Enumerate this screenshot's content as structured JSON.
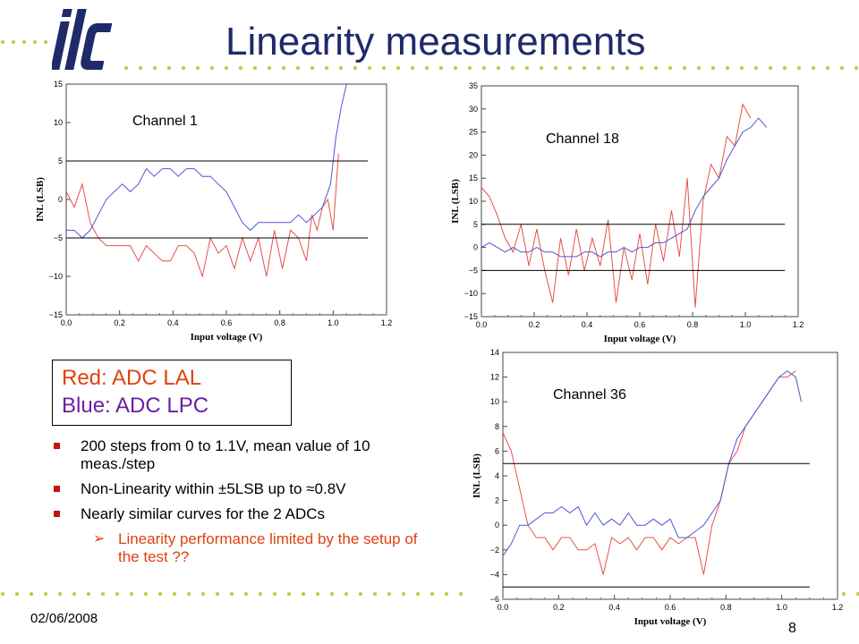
{
  "slide": {
    "title": "Linearity measurements",
    "date": "02/06/2008",
    "page_number": "8",
    "logo_text": "ilc"
  },
  "legend": {
    "red_label": "Red: ADC LAL",
    "blue_label": "Blue: ADC LPC"
  },
  "bullets": [
    "200 steps from 0 to 1.1V, mean value of 10 meas./step",
    "Non-Linearity within ±5LSB up to ≈0.8V",
    "Nearly similar curves for the 2 ADCs"
  ],
  "sub_bullet": "Linearity performance limited by the setup of the test ??",
  "colors": {
    "title": "#1f2a6b",
    "red_series": "#e8504a",
    "blue_series": "#4f55d8",
    "legend_red": "#e0420c",
    "legend_blue": "#6b1fa0",
    "dots": "#c9c94a",
    "bullet_marker": "#c0160c"
  },
  "chart_data": [
    {
      "type": "line",
      "annotation": "Channel 1",
      "xlabel": "Input voltage (V)",
      "ylabel": "INL (LSB)",
      "xlim": [
        0,
        1.2
      ],
      "ylim": [
        -15,
        15
      ],
      "xticks": [
        "0.0",
        "0.2",
        "0.4",
        "0.6",
        "0.8",
        "1.0",
        "1.2"
      ],
      "yticks": [
        "−15",
        "−10",
        "−5",
        "0",
        "5",
        "10",
        "15"
      ],
      "hlines": [
        5,
        -5
      ],
      "hline_xrange": [
        0,
        1.13
      ],
      "series": [
        {
          "color": "red",
          "x": [
            0.0,
            0.03,
            0.06,
            0.09,
            0.12,
            0.15,
            0.18,
            0.21,
            0.24,
            0.27,
            0.3,
            0.33,
            0.36,
            0.39,
            0.42,
            0.45,
            0.48,
            0.51,
            0.54,
            0.57,
            0.6,
            0.63,
            0.66,
            0.69,
            0.72,
            0.75,
            0.78,
            0.81,
            0.84,
            0.87,
            0.9,
            0.92,
            0.94,
            0.96,
            0.98,
            1.0,
            1.02
          ],
          "y": [
            1,
            -1,
            2,
            -3,
            -5,
            -6,
            -6,
            -6,
            -6,
            -8,
            -6,
            -7,
            -8,
            -8,
            -6,
            -6,
            -7,
            -10,
            -5,
            -7,
            -6,
            -9,
            -5,
            -8,
            -5,
            -10,
            -4,
            -9,
            -4,
            -5,
            -8,
            -2,
            -4,
            -1,
            0,
            -4,
            6
          ]
        },
        {
          "color": "blue",
          "x": [
            0.0,
            0.03,
            0.06,
            0.09,
            0.12,
            0.15,
            0.18,
            0.21,
            0.24,
            0.27,
            0.3,
            0.33,
            0.36,
            0.39,
            0.42,
            0.45,
            0.48,
            0.51,
            0.54,
            0.57,
            0.6,
            0.63,
            0.66,
            0.69,
            0.72,
            0.75,
            0.78,
            0.81,
            0.84,
            0.87,
            0.9,
            0.93,
            0.96,
            0.99,
            1.01,
            1.03,
            1.05
          ],
          "y": [
            -4,
            -4,
            -5,
            -4,
            -2,
            0,
            1,
            2,
            1,
            2,
            4,
            3,
            4,
            4,
            3,
            4,
            4,
            3,
            3,
            2,
            1,
            -1,
            -3,
            -4,
            -3,
            -3,
            -3,
            -3,
            -3,
            -2,
            -3,
            -2,
            -1,
            2,
            8,
            12,
            15
          ]
        }
      ]
    },
    {
      "type": "line",
      "annotation": "Channel 18",
      "xlabel": "Input voltage (V)",
      "ylabel": "INL (LSB)",
      "xlim": [
        0,
        1.2
      ],
      "ylim": [
        -15,
        35
      ],
      "xticks": [
        "0.0",
        "0.2",
        "0.4",
        "0.6",
        "0.8",
        "1.0",
        "1.2"
      ],
      "yticks": [
        "−15",
        "−10",
        "−5",
        "0",
        "5",
        "10",
        "15",
        "20",
        "25",
        "30",
        "35"
      ],
      "hlines": [
        5,
        -5
      ],
      "hline_xrange": [
        0,
        1.15
      ],
      "series": [
        {
          "color": "red",
          "x": [
            0.0,
            0.03,
            0.06,
            0.09,
            0.12,
            0.15,
            0.18,
            0.21,
            0.24,
            0.27,
            0.3,
            0.33,
            0.36,
            0.39,
            0.42,
            0.45,
            0.48,
            0.51,
            0.54,
            0.57,
            0.6,
            0.63,
            0.66,
            0.69,
            0.72,
            0.75,
            0.78,
            0.81,
            0.84,
            0.87,
            0.9,
            0.93,
            0.96,
            0.99,
            1.02
          ],
          "y": [
            13,
            11,
            7,
            2,
            -1,
            5,
            -4,
            4,
            -5,
            -12,
            2,
            -6,
            4,
            -5,
            2,
            -4,
            6,
            -12,
            0,
            -7,
            3,
            -8,
            5,
            -3,
            8,
            -2,
            15,
            -13,
            10,
            18,
            15,
            24,
            22,
            31,
            28
          ]
        },
        {
          "color": "blue",
          "x": [
            0.0,
            0.03,
            0.06,
            0.09,
            0.12,
            0.15,
            0.18,
            0.21,
            0.24,
            0.27,
            0.3,
            0.33,
            0.36,
            0.39,
            0.42,
            0.45,
            0.48,
            0.51,
            0.54,
            0.57,
            0.6,
            0.63,
            0.66,
            0.69,
            0.72,
            0.75,
            0.78,
            0.81,
            0.84,
            0.87,
            0.9,
            0.93,
            0.96,
            0.99,
            1.02,
            1.05,
            1.08
          ],
          "y": [
            0,
            1,
            0,
            -1,
            0,
            -1,
            -1,
            0,
            -1,
            -1,
            -2,
            -2,
            -2,
            -1,
            -1,
            -2,
            -1,
            -1,
            0,
            -1,
            0,
            0,
            1,
            1,
            2,
            3,
            4,
            8,
            11,
            13,
            15,
            19,
            22,
            25,
            26,
            28,
            26
          ]
        }
      ]
    },
    {
      "type": "line",
      "annotation": "Channel 36",
      "xlabel": "Input voltage (V)",
      "ylabel": "INL (LSB)",
      "xlim": [
        0,
        1.2
      ],
      "ylim": [
        -6,
        14
      ],
      "xticks": [
        "0.0",
        "0.2",
        "0.4",
        "0.6",
        "0.8",
        "1.0",
        "1.2"
      ],
      "yticks": [
        "−6",
        "−4",
        "−2",
        "0",
        "2",
        "4",
        "6",
        "8",
        "10",
        "12",
        "14"
      ],
      "hlines": [
        5,
        -5
      ],
      "hline_xrange": [
        0,
        1.1
      ],
      "series": [
        {
          "color": "red",
          "x": [
            0.0,
            0.03,
            0.06,
            0.09,
            0.12,
            0.15,
            0.18,
            0.21,
            0.24,
            0.27,
            0.3,
            0.33,
            0.36,
            0.39,
            0.42,
            0.45,
            0.48,
            0.51,
            0.54,
            0.57,
            0.6,
            0.63,
            0.66,
            0.69,
            0.72,
            0.75,
            0.78,
            0.81,
            0.84,
            0.87,
            0.9,
            0.93,
            0.96,
            0.99,
            1.02,
            1.05
          ],
          "y": [
            7.5,
            6,
            3,
            0,
            -1,
            -1,
            -2,
            -1,
            -1,
            -2,
            -2,
            -1.5,
            -4,
            -1,
            -1.5,
            -1,
            -2,
            -1,
            -1,
            -2,
            -1,
            -1.5,
            -1,
            -1,
            -4,
            0,
            2,
            5,
            6,
            8,
            9,
            10,
            11,
            12,
            12,
            12.5
          ]
        },
        {
          "color": "blue",
          "x": [
            0.0,
            0.03,
            0.06,
            0.09,
            0.12,
            0.15,
            0.18,
            0.21,
            0.24,
            0.27,
            0.3,
            0.33,
            0.36,
            0.39,
            0.42,
            0.45,
            0.48,
            0.51,
            0.54,
            0.57,
            0.6,
            0.63,
            0.66,
            0.69,
            0.72,
            0.75,
            0.78,
            0.81,
            0.84,
            0.87,
            0.9,
            0.93,
            0.96,
            0.99,
            1.02,
            1.05,
            1.07
          ],
          "y": [
            -2.5,
            -1.5,
            0,
            0,
            0.5,
            1,
            1,
            1.5,
            1,
            1.5,
            0,
            1,
            0,
            0.5,
            0,
            1,
            0,
            0,
            0.5,
            0,
            0.5,
            -1,
            -1,
            -0.5,
            0,
            1,
            2,
            5,
            7,
            8,
            9,
            10,
            11,
            12,
            12.5,
            12,
            10
          ]
        }
      ]
    }
  ]
}
